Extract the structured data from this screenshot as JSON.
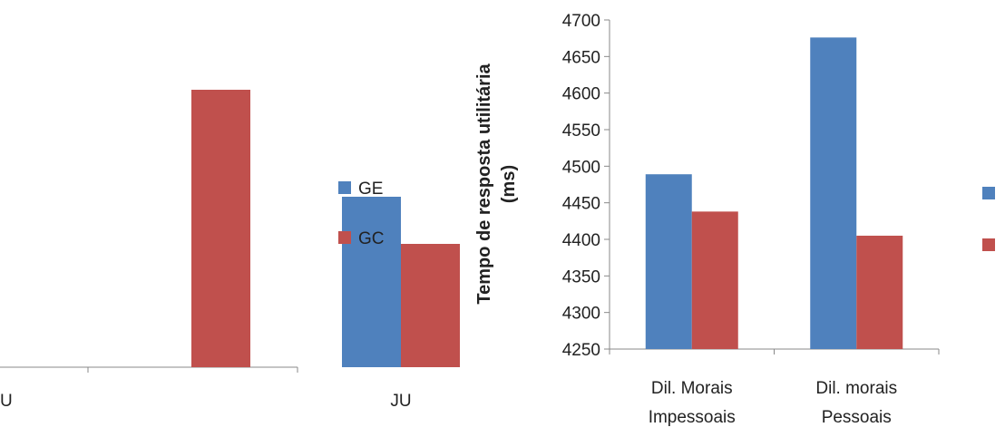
{
  "chart_data": [
    {
      "type": "bar",
      "categories": [
        "U",
        "JU"
      ],
      "series": [
        {
          "name": "GE",
          "color": "#4f81bd",
          "values": [
            null,
            188
          ]
        },
        {
          "name": "GC",
          "color": "#c0504d",
          "values": [
            306,
            136
          ]
        }
      ]
    },
    {
      "type": "bar",
      "y_label": [
        "Tempo de resposta utilitária",
        "(ms)"
      ],
      "categories": [
        [
          "Dil. Morais",
          "Impessoais"
        ],
        [
          "Dil. morais",
          "Pessoais"
        ]
      ],
      "series": [
        {
          "color": "#4f81bd",
          "values": [
            4489,
            4676
          ]
        },
        {
          "color": "#c0504d",
          "values": [
            4438,
            4405
          ]
        }
      ],
      "ylim": [
        4250,
        4700
      ],
      "yticks": [
        4250,
        4300,
        4350,
        4400,
        4450,
        4500,
        4550,
        4600,
        4650,
        4700
      ]
    }
  ]
}
